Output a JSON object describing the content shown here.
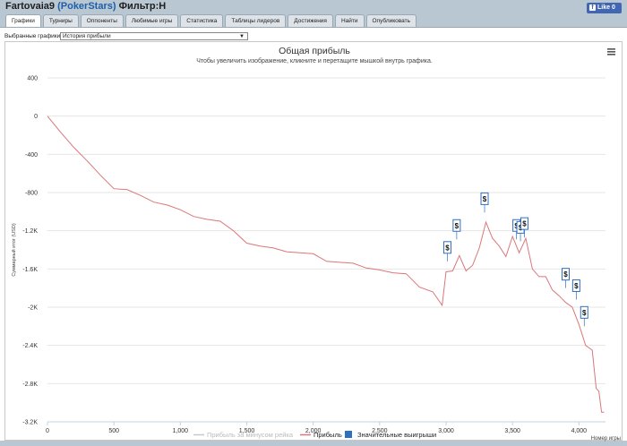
{
  "header": {
    "player": "Fartovaia9",
    "site": "(PokerStars)",
    "filter": "Фильтр:Н",
    "fb_like": "Like 0"
  },
  "tabs": [
    "Графики",
    "Турниры",
    "Оппоненты",
    "Любимые игры",
    "Статистика",
    "Таблицы лидеров",
    "Достижения",
    "Найти",
    "Опубликовать"
  ],
  "active_tab": "Графики",
  "selector": {
    "label": "Выбранные графики:",
    "value": "История прибыли"
  },
  "chart_data": {
    "type": "line",
    "title": "Общая прибыль",
    "subtitle": "Чтобы увеличить изображение, кликните и перетащите мышкой внутрь графика.",
    "ylabel": "Суммарный итог (USD)",
    "xlabel": "Номер игры",
    "xlim": [
      0,
      4200
    ],
    "ylim": [
      -3200,
      400
    ],
    "yticks": [
      400,
      0,
      -400,
      -800,
      -1200,
      -1600,
      -2000,
      -2400,
      -2800,
      -3200
    ],
    "ytick_labels": [
      "400",
      "0",
      "-400",
      "-800",
      "-1.2K",
      "-1.6K",
      "-2K",
      "-2.4K",
      "-2.8K",
      "-3.2K"
    ],
    "xticks": [
      0,
      500,
      1000,
      1500,
      2000,
      2500,
      3000,
      3500,
      4000
    ],
    "xtick_labels": [
      "0",
      "500",
      "1,000",
      "1,500",
      "2,000",
      "2,500",
      "3,000",
      "3,500",
      "4,000"
    ],
    "grid": true,
    "legend_position": "bottom",
    "legend": [
      "Прибыль за минусом рейка",
      "Прибыль",
      "Значительные выигрыши"
    ],
    "colors": {
      "profit": "#d9777a",
      "rake_series_legend": "#c8c8c8",
      "big_wins": "#2f6fc0",
      "title": "#333333"
    },
    "series": [
      {
        "name": "Прибыль",
        "x": [
          0,
          100,
          200,
          300,
          400,
          500,
          600,
          700,
          800,
          900,
          1000,
          1100,
          1200,
          1300,
          1400,
          1500,
          1600,
          1700,
          1800,
          1900,
          2000,
          2100,
          2200,
          2300,
          2400,
          2500,
          2600,
          2700,
          2800,
          2900,
          2970,
          3000,
          3050,
          3100,
          3150,
          3200,
          3250,
          3300,
          3350,
          3400,
          3450,
          3500,
          3550,
          3600,
          3650,
          3700,
          3750,
          3800,
          3850,
          3900,
          3950,
          4000,
          4050,
          4100,
          4130,
          4150,
          4170,
          4190
        ],
        "y": [
          0,
          -170,
          -330,
          -470,
          -620,
          -760,
          -770,
          -830,
          -900,
          -930,
          -980,
          -1050,
          -1080,
          -1100,
          -1200,
          -1330,
          -1360,
          -1380,
          -1420,
          -1430,
          -1440,
          -1520,
          -1530,
          -1540,
          -1590,
          -1610,
          -1640,
          -1650,
          -1790,
          -1840,
          -1980,
          -1630,
          -1620,
          -1460,
          -1620,
          -1560,
          -1380,
          -1110,
          -1280,
          -1360,
          -1470,
          -1260,
          -1430,
          -1280,
          -1600,
          -1680,
          -1680,
          -1820,
          -1880,
          -1950,
          -2000,
          -2180,
          -2400,
          -2450,
          -2850,
          -2880,
          -3100,
          -3100
        ]
      }
    ],
    "big_wins": [
      {
        "x": 3010,
        "y": -1520
      },
      {
        "x": 3080,
        "y": -1290
      },
      {
        "x": 3290,
        "y": -1010
      },
      {
        "x": 3530,
        "y": -1290
      },
      {
        "x": 3560,
        "y": -1310
      },
      {
        "x": 3590,
        "y": -1270
      },
      {
        "x": 3900,
        "y": -1800
      },
      {
        "x": 3980,
        "y": -1920
      },
      {
        "x": 4040,
        "y": -2200
      }
    ]
  }
}
